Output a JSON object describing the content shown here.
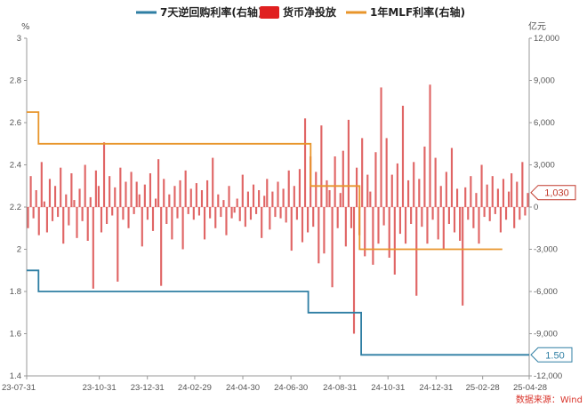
{
  "chart_data": {
    "type": "bar+line",
    "legend": [
      {
        "name": "7天逆回购利率(右轴)",
        "color": "#2e7ea3",
        "shape": "line"
      },
      {
        "name": "货币净投放",
        "color": "#e02020",
        "shape": "rect"
      },
      {
        "name": "1年MLF利率(右轴)",
        "color": "#e8952b",
        "shape": "line"
      }
    ],
    "left_axis": {
      "unit": "%",
      "min": 1.4,
      "max": 3.0,
      "ticks": [
        "3",
        "2.8",
        "2.6",
        "2.4",
        "2.2",
        "2",
        "1.8",
        "1.6",
        "1.4"
      ]
    },
    "right_axis": {
      "unit": "亿元",
      "min": -12000,
      "max": 12000,
      "ticks": [
        "12,000",
        "9,000",
        "6,000",
        "3,000",
        "0",
        "-3,000",
        "-6,000",
        "-9,000",
        "-12,000"
      ]
    },
    "x_axis": {
      "start": "2023-07-31",
      "end": "2025-04-28",
      "ticks": [
        "23-07-31",
        "23-10-31",
        "23-12-31",
        "24-02-29",
        "24-04-30",
        "24-06-30",
        "24-08-31",
        "24-10-31",
        "24-12-31",
        "25-02-28",
        "25-04-28"
      ]
    },
    "series": [
      {
        "name": "7天逆回购利率(右轴)",
        "axis": "left",
        "steps": [
          {
            "from": "2023-07-31",
            "value": 1.9
          },
          {
            "from": "2023-08-15",
            "value": 1.8
          },
          {
            "from": "2024-07-22",
            "value": 1.7
          },
          {
            "from": "2024-09-27",
            "value": 1.5
          }
        ]
      },
      {
        "name": "1年MLF利率(右轴)",
        "axis": "left",
        "steps": [
          {
            "from": "2023-07-31",
            "value": 2.65
          },
          {
            "from": "2023-08-15",
            "value": 2.5
          },
          {
            "from": "2024-07-25",
            "value": 2.3
          },
          {
            "from": "2024-09-25",
            "value": 2.0
          },
          {
            "end": "2025-03-25"
          }
        ]
      },
      {
        "name": "货币净投放",
        "axis": "right",
        "values": [
          -1500,
          2200,
          -800,
          1200,
          -2000,
          3200,
          400,
          -1800,
          2000,
          -1000,
          1500,
          -700,
          2800,
          -2600,
          900,
          -1300,
          2400,
          500,
          -2200,
          1300,
          -1000,
          3000,
          -2400,
          700,
          -5800,
          2600,
          1500,
          -1800,
          4600,
          -1200,
          2200,
          -600,
          1400,
          -5300,
          2800,
          -900,
          1800,
          -1500,
          2500,
          -500,
          1800,
          900,
          -2800,
          1600,
          -900,
          2400,
          -1700,
          600,
          3400,
          -5600,
          2000,
          -1200,
          900,
          -2300,
          1500,
          -800,
          1900,
          -3000,
          2600,
          -500,
          1300,
          -900,
          1700,
          -600,
          1200,
          -2300,
          1900,
          -800,
          3500,
          -1500,
          900,
          -700,
          500,
          -2000,
          1500,
          -800,
          -400,
          600,
          -1000,
          2300,
          -1400,
          1100,
          -900,
          1600,
          -500,
          1200,
          -2200,
          800,
          2000,
          -1600,
          1100,
          -700,
          1800,
          -800,
          1300,
          -1100,
          2600,
          -3100,
          1500,
          -900,
          2700,
          -2500,
          6300,
          -1800,
          3600,
          -1400,
          2500,
          -4000,
          5800,
          -3300,
          1900,
          1200,
          -5700,
          3600,
          -1500,
          1000,
          4000,
          -2800,
          6200,
          -1500,
          -9000,
          2800,
          -2000,
          4900,
          -3500,
          2300,
          1100,
          -4100,
          3900,
          -2600,
          8500,
          -1300,
          4900,
          -3600,
          2300,
          -4800,
          3100,
          -1900,
          7200,
          -2600,
          1900,
          -1200,
          3200,
          -6300,
          2000,
          -1400,
          4300,
          -2600,
          8700,
          -900,
          3500,
          -2300,
          1500,
          -3000,
          2500,
          -1200,
          4200,
          -1800,
          1300,
          -2400,
          -7000,
          1400,
          -900,
          2200,
          -1500,
          1000,
          -2600,
          3000,
          -700,
          1600,
          -1000,
          2200,
          -500,
          1300,
          -1800,
          2000,
          -900,
          1100,
          2400,
          -1500,
          1800,
          -900,
          3200,
          -600,
          1000
        ]
      }
    ],
    "callouts": [
      {
        "series": "货币净投放",
        "text": "1,030",
        "color": "#c0392b"
      },
      {
        "series": "7天逆回购利率(右轴)",
        "text": "1.50",
        "color": "#2e7ea3"
      }
    ],
    "source": "数据来源：Wind"
  }
}
